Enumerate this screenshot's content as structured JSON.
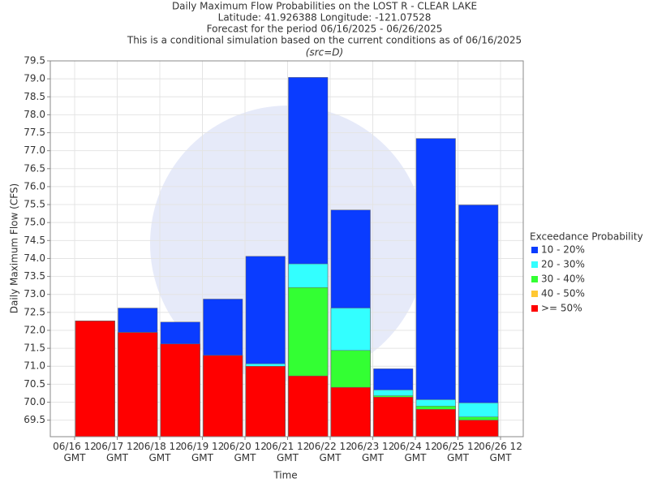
{
  "chart_data": {
    "type": "bar",
    "title": [
      "Daily Maximum Flow Probabilities on the LOST R - CLEAR LAKE",
      "Latitude: 41.926388 Longitude: -121.07528",
      "Forecast for the period 06/16/2025 - 06/26/2025",
      "This is a conditional simulation based on the current conditions as of 06/16/2025"
    ],
    "subtitle": "(src=D)",
    "x_label": "Time",
    "y_label": "Daily Maximum Flow (CFS)",
    "legend_title": "Exceedance Probability",
    "xticks": [
      "06/16 12 GMT",
      "06/17 12 GMT",
      "06/18 12 GMT",
      "06/19 12 GMT",
      "06/20 12 GMT",
      "06/21 12 GMT",
      "06/22 12 GMT",
      "06/23 12 GMT",
      "06/24 12 GMT",
      "06/25 12 GMT",
      "06/26 12 GMT"
    ],
    "ylim": [
      69.04,
      79.5
    ],
    "yticks": [
      69.5,
      {
        "value": 70,
        "label": "70.0"
      },
      70.5,
      {
        "value": 71,
        "label": "71.0"
      },
      71.5,
      {
        "value": 72,
        "label": "72.0"
      },
      72.5,
      {
        "value": 73,
        "label": "73.0"
      },
      73.5,
      {
        "value": 74,
        "label": "74.0"
      },
      74.5,
      {
        "value": 75,
        "label": "75.0"
      },
      75.5,
      {
        "value": 76,
        "label": "76.0"
      },
      76.5,
      {
        "value": 77,
        "label": "77.0"
      },
      77.5,
      {
        "value": 78,
        "label": "78.0"
      },
      78.5,
      {
        "value": 79,
        "label": "79.0"
      },
      79.5
    ],
    "grid": true,
    "series": [
      {
        "name": "10 - 20%",
        "color": "#0a3cff",
        "values": [
          72.26,
          72.62,
          72.23,
          72.87,
          74.06,
          79.04,
          75.35,
          70.93,
          77.34,
          75.49
        ]
      },
      {
        "name": "20 - 30%",
        "color": "#33ffff",
        "values": [
          72.26,
          71.94,
          71.62,
          71.3,
          71.07,
          73.85,
          72.62,
          70.34,
          70.07,
          69.98
        ]
      },
      {
        "name": "30 - 40%",
        "color": "#33ff33",
        "values": [
          72.26,
          71.94,
          71.62,
          71.3,
          71.0,
          73.19,
          71.44,
          70.18,
          69.89,
          69.59
        ]
      },
      {
        "name": "40 - 50%",
        "color": "#ffc833",
        "values": [
          72.26,
          71.94,
          71.62,
          71.3,
          71.0,
          70.73,
          70.41,
          70.14,
          69.8,
          69.5
        ]
      },
      {
        "name": ">= 50%",
        "color": "#ff0000",
        "values": [
          72.26,
          71.94,
          71.62,
          71.3,
          71.0,
          70.73,
          70.41,
          70.14,
          69.8,
          69.5
        ]
      }
    ]
  }
}
